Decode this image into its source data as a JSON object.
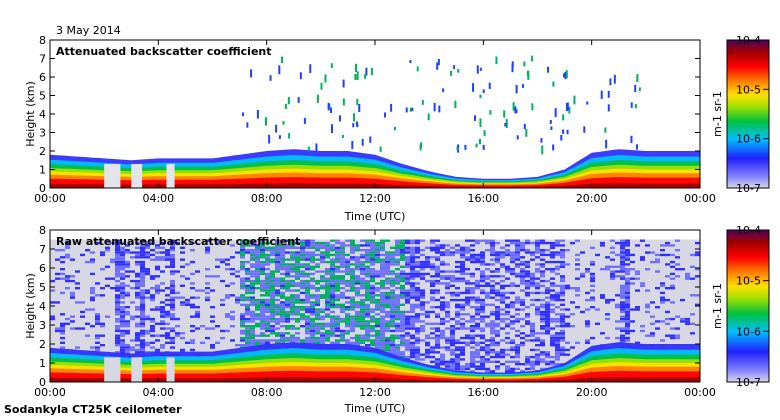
{
  "header": {
    "date": "3 May 2014"
  },
  "footer": {
    "instrument": "Sodankyla CT25K ceilometer"
  },
  "colorbar": {
    "ticks": [
      "10-4",
      "10-5",
      "10-6",
      "10-7"
    ],
    "unit": "m-1 sr-1",
    "colors": [
      "#3a00a0",
      "#2020ff",
      "#00c0ff",
      "#00c040",
      "#a0e000",
      "#ffe000",
      "#ff8000",
      "#ff0000",
      "#a00000",
      "#500060"
    ]
  },
  "chart_data": [
    {
      "type": "heatmap",
      "title": "Attenuated backscatter coefficient",
      "xlabel": "Time (UTC)",
      "ylabel": "Height (km)",
      "xlim": [
        0,
        24
      ],
      "ylim": [
        0,
        8
      ],
      "x_tick_labels": [
        "00:00",
        "04:00",
        "08:00",
        "12:00",
        "16:00",
        "20:00",
        "00:00"
      ],
      "y_tick_labels": [
        "0",
        "1",
        "2",
        "3",
        "4",
        "5",
        "6",
        "7",
        "8"
      ],
      "colorbar": {
        "scale": "log",
        "range": [
          1e-07,
          0.0001
        ],
        "unit": "m-1 sr-1"
      },
      "layer_top_km": [
        {
          "t": 0.0,
          "h": 1.8
        },
        {
          "t": 1.0,
          "h": 1.7
        },
        {
          "t": 2.0,
          "h": 1.6
        },
        {
          "t": 3.0,
          "h": 1.5
        },
        {
          "t": 4.0,
          "h": 1.6
        },
        {
          "t": 5.0,
          "h": 1.6
        },
        {
          "t": 6.0,
          "h": 1.6
        },
        {
          "t": 7.0,
          "h": 1.8
        },
        {
          "t": 8.0,
          "h": 2.0
        },
        {
          "t": 9.0,
          "h": 2.1
        },
        {
          "t": 10.0,
          "h": 2.0
        },
        {
          "t": 11.0,
          "h": 2.0
        },
        {
          "t": 12.0,
          "h": 1.8
        },
        {
          "t": 13.0,
          "h": 1.3
        },
        {
          "t": 14.0,
          "h": 0.9
        },
        {
          "t": 15.0,
          "h": 0.6
        },
        {
          "t": 16.0,
          "h": 0.5
        },
        {
          "t": 17.0,
          "h": 0.5
        },
        {
          "t": 18.0,
          "h": 0.6
        },
        {
          "t": 19.0,
          "h": 1.0
        },
        {
          "t": 20.0,
          "h": 1.9
        },
        {
          "t": 21.0,
          "h": 2.1
        },
        {
          "t": 22.0,
          "h": 2.0
        },
        {
          "t": 23.0,
          "h": 2.0
        },
        {
          "t": 24.0,
          "h": 2.0
        }
      ]
    },
    {
      "type": "heatmap",
      "title": "Raw attenuated backscatter coefficient",
      "xlabel": "Time (UTC)",
      "ylabel": "Height (km)",
      "xlim": [
        0,
        24
      ],
      "ylim": [
        0,
        8
      ],
      "x_tick_labels": [
        "00:00",
        "04:00",
        "08:00",
        "12:00",
        "16:00",
        "20:00",
        "00:00"
      ],
      "y_tick_labels": [
        "0",
        "1",
        "2",
        "3",
        "4",
        "5",
        "6",
        "7",
        "8"
      ],
      "colorbar": {
        "scale": "log",
        "range": [
          1e-07,
          0.0001
        ],
        "unit": "m-1 sr-1"
      },
      "noise_ceiling_km": 7.5,
      "layer_top_km": [
        {
          "t": 0.0,
          "h": 1.8
        },
        {
          "t": 1.0,
          "h": 1.7
        },
        {
          "t": 2.0,
          "h": 1.6
        },
        {
          "t": 3.0,
          "h": 1.5
        },
        {
          "t": 4.0,
          "h": 1.6
        },
        {
          "t": 5.0,
          "h": 1.6
        },
        {
          "t": 6.0,
          "h": 1.6
        },
        {
          "t": 7.0,
          "h": 1.8
        },
        {
          "t": 8.0,
          "h": 2.0
        },
        {
          "t": 9.0,
          "h": 2.1
        },
        {
          "t": 10.0,
          "h": 2.0
        },
        {
          "t": 11.0,
          "h": 2.0
        },
        {
          "t": 12.0,
          "h": 1.8
        },
        {
          "t": 13.0,
          "h": 1.3
        },
        {
          "t": 14.0,
          "h": 0.9
        },
        {
          "t": 15.0,
          "h": 0.6
        },
        {
          "t": 16.0,
          "h": 0.5
        },
        {
          "t": 17.0,
          "h": 0.5
        },
        {
          "t": 18.0,
          "h": 0.6
        },
        {
          "t": 19.0,
          "h": 1.0
        },
        {
          "t": 20.0,
          "h": 1.9
        },
        {
          "t": 21.0,
          "h": 2.1
        },
        {
          "t": 22.0,
          "h": 2.0
        },
        {
          "t": 23.0,
          "h": 2.0
        },
        {
          "t": 24.0,
          "h": 2.0
        }
      ]
    }
  ]
}
